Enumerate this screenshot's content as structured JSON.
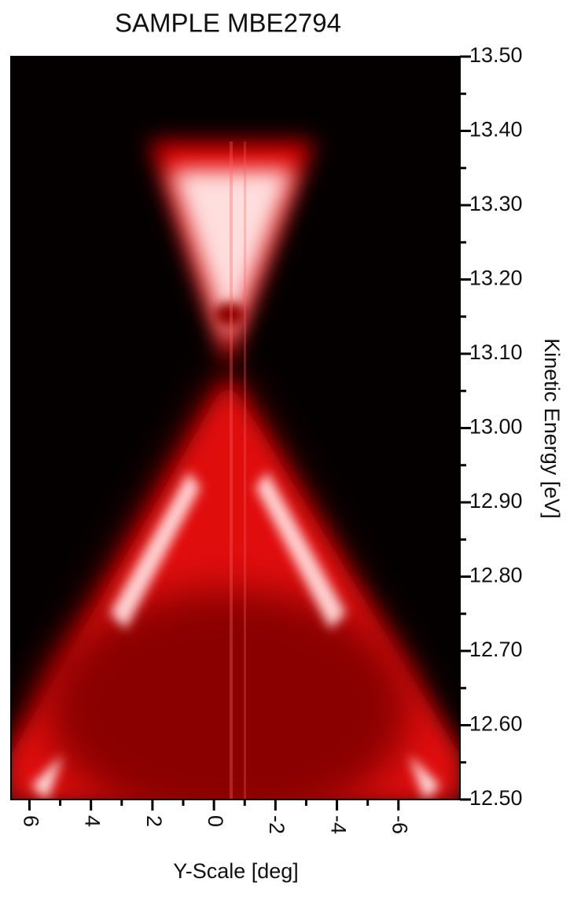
{
  "chart_data": {
    "type": "image",
    "title": "SAMPLE MBE2794",
    "x_label": "Y-Scale [deg]",
    "y_label": "Kinetic Energy [eV]",
    "xlim": [
      6.6,
      -8
    ],
    "xticks": [
      6,
      4,
      2,
      0,
      -2,
      -4,
      -6
    ],
    "ylim": [
      12.5,
      13.5
    ],
    "yticks": [
      {
        "value": 12.5,
        "label": "12.50"
      },
      {
        "value": 12.6,
        "label": "12.60"
      },
      {
        "value": 12.7,
        "label": "12.70"
      },
      {
        "value": 12.8,
        "label": "12.80"
      },
      {
        "value": 12.9,
        "label": "12.90"
      },
      {
        "value": 13.0,
        "label": "13.00"
      },
      {
        "value": 13.1,
        "label": "13.10"
      },
      {
        "value": 13.2,
        "label": "13.20"
      },
      {
        "value": 13.3,
        "label": "13.30"
      },
      {
        "value": 13.4,
        "label": "13.40"
      },
      {
        "value": 13.5,
        "label": "13.50"
      }
    ]
  }
}
